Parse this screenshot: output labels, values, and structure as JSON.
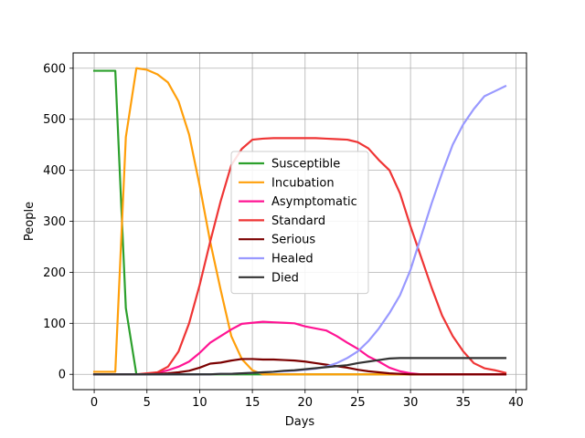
{
  "chart_data": {
    "type": "line",
    "title": "",
    "xlabel": "Days",
    "ylabel": "People",
    "xlim": [
      -2,
      41
    ],
    "ylim": [
      -30,
      630
    ],
    "x_ticks": [
      0,
      5,
      10,
      15,
      20,
      25,
      30,
      35,
      40
    ],
    "y_ticks": [
      0,
      100,
      200,
      300,
      400,
      500,
      600
    ],
    "grid": true,
    "legend_position": "center",
    "x": [
      0,
      1,
      2,
      3,
      4,
      5,
      6,
      7,
      8,
      9,
      10,
      11,
      12,
      13,
      14,
      15,
      16,
      17,
      18,
      19,
      20,
      21,
      22,
      23,
      24,
      25,
      26,
      27,
      28,
      29,
      30,
      31,
      32,
      33,
      34,
      35,
      36,
      37,
      38,
      39
    ],
    "series": [
      {
        "name": "Susceptible",
        "color": "#2ca02c",
        "values": [
          595,
          595,
          595,
          130,
          0,
          0,
          0,
          0,
          0,
          0,
          0,
          0,
          0,
          0,
          0,
          0,
          0,
          0,
          0,
          0,
          0,
          0,
          0,
          0,
          0,
          0,
          0,
          0,
          0,
          0,
          0,
          0,
          0,
          0,
          0,
          0,
          0,
          0,
          0,
          0
        ]
      },
      {
        "name": "Incubation",
        "color": "#ff9f0a",
        "values": [
          5,
          5,
          5,
          465,
          600,
          597,
          588,
          572,
          535,
          470,
          370,
          260,
          165,
          75,
          30,
          8,
          0,
          0,
          0,
          0,
          0,
          0,
          0,
          0,
          0,
          0,
          0,
          0,
          0,
          0,
          0,
          0,
          0,
          0,
          0,
          0,
          0,
          0,
          0,
          0
        ]
      },
      {
        "name": "Asymptomatic",
        "color": "#ff1493",
        "values": [
          0,
          0,
          0,
          0,
          0,
          0,
          3,
          8,
          15,
          25,
          42,
          62,
          75,
          88,
          99,
          101,
          103,
          102,
          101,
          100,
          94,
          90,
          86,
          75,
          62,
          50,
          35,
          25,
          13,
          6,
          2,
          0,
          0,
          0,
          0,
          0,
          0,
          0,
          0,
          0
        ]
      },
      {
        "name": "Standard",
        "color": "#ef3535",
        "values": [
          0,
          0,
          0,
          0,
          0,
          2,
          4,
          15,
          45,
          100,
          175,
          260,
          340,
          410,
          442,
          460,
          462,
          463,
          463,
          463,
          463,
          463,
          462,
          461,
          460,
          455,
          443,
          420,
          400,
          355,
          290,
          230,
          170,
          115,
          75,
          45,
          22,
          12,
          8,
          3
        ]
      },
      {
        "name": "Serious",
        "color": "#7b0000",
        "values": [
          0,
          0,
          0,
          0,
          0,
          0,
          1,
          2,
          4,
          7,
          13,
          21,
          23,
          27,
          30,
          30,
          29,
          29,
          28,
          27,
          25,
          22,
          19,
          16,
          13,
          9,
          6,
          4,
          2,
          1,
          0,
          0,
          0,
          0,
          0,
          0,
          0,
          0,
          0,
          0
        ]
      },
      {
        "name": "Healed",
        "color": "#9999ff",
        "values": [
          0,
          0,
          0,
          0,
          0,
          0,
          0,
          0,
          0,
          0,
          0,
          0,
          1,
          1,
          2,
          3,
          4,
          5,
          6,
          7,
          9,
          11,
          15,
          22,
          32,
          45,
          65,
          90,
          120,
          155,
          205,
          270,
          335,
          395,
          450,
          490,
          520,
          545,
          555,
          565
        ]
      },
      {
        "name": "Died",
        "color": "#333333",
        "values": [
          0,
          0,
          0,
          0,
          0,
          0,
          0,
          0,
          0,
          0,
          0,
          0,
          1,
          1,
          2,
          3,
          4,
          5,
          7,
          8,
          10,
          12,
          14,
          16,
          18,
          22,
          25,
          28,
          31,
          32,
          32,
          32,
          32,
          32,
          32,
          32,
          32,
          32,
          32,
          32
        ]
      }
    ]
  }
}
